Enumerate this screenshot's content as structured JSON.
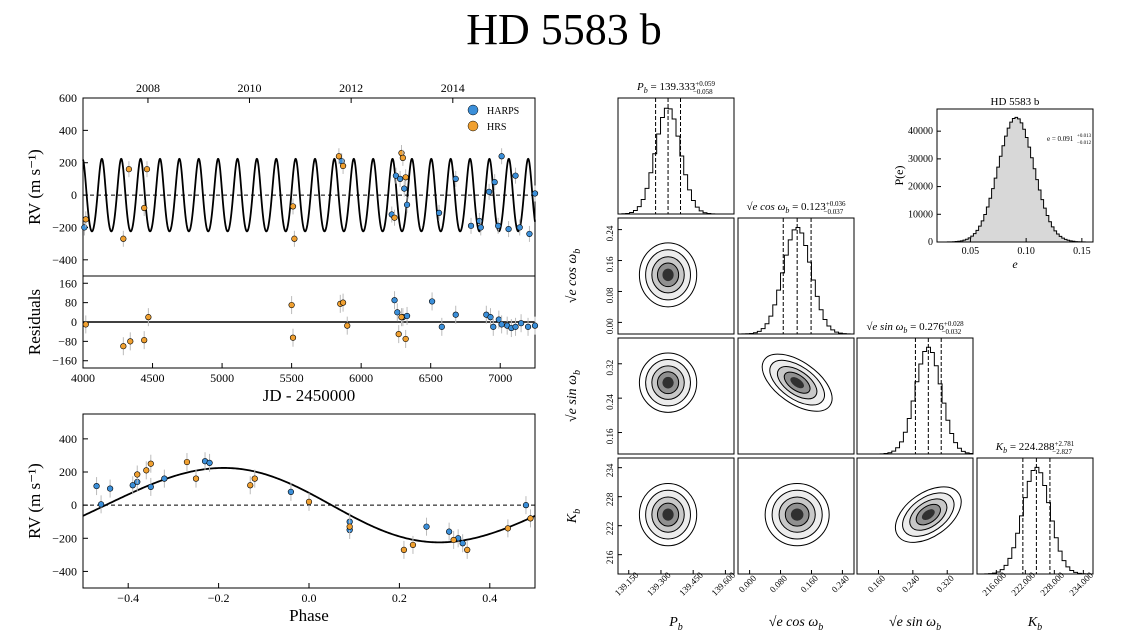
{
  "figure": {
    "title": "HD 5583 b"
  },
  "colors": {
    "harps": "#3b8fd9",
    "hrs": "#f0a030",
    "contour": "#000000",
    "hist_fill": "#d8d8d8"
  },
  "chart_data": [
    {
      "id": "rv_time",
      "type": "scatter",
      "title": "",
      "xlabel": "",
      "ylabel": "RV (m s⁻¹)",
      "xlim": [
        4000,
        7250
      ],
      "ylim": [
        -500,
        600
      ],
      "yticks": [
        -400,
        -200,
        0,
        200,
        400,
        600
      ],
      "top_axis": {
        "label_positions_jd": [
          4467,
          5197,
          5928,
          6659
        ],
        "labels": [
          "2008",
          "2010",
          "2012",
          "2014"
        ]
      },
      "legend": [
        "HARPS",
        "HRS"
      ],
      "legend_placement": "top-right",
      "model": {
        "period": 139.333,
        "amplitude": 224,
        "ecc": 0.091,
        "offset": 0
      },
      "series": [
        {
          "name": "HARPS",
          "x": [
            4010,
            5860,
            6220,
            6250,
            6280,
            6310,
            6330,
            6560,
            6680,
            6790,
            6850,
            6860,
            6920,
            6960,
            6985,
            7010,
            7060,
            7110,
            7140,
            7210,
            7250
          ],
          "y": [
            -200,
            210,
            -120,
            120,
            100,
            40,
            -60,
            -110,
            100,
            -190,
            -160,
            -200,
            20,
            80,
            -190,
            240,
            -210,
            120,
            -200,
            -240,
            10
          ]
        },
        {
          "name": "HRS",
          "x": [
            4020,
            4290,
            4330,
            4440,
            4460,
            5510,
            5520,
            5840,
            5870,
            6240,
            6290,
            6300,
            6320
          ],
          "y": [
            -150,
            -270,
            160,
            -80,
            160,
            -70,
            -270,
            240,
            180,
            -140,
            260,
            230,
            110
          ]
        }
      ]
    },
    {
      "id": "residuals",
      "type": "scatter",
      "xlabel": "JD - 2450000",
      "ylabel": "Residuals",
      "xlim": [
        4000,
        7250
      ],
      "ylim": [
        -190,
        190
      ],
      "yticks": [
        -160,
        -80,
        0,
        80,
        160
      ],
      "ytick_labels": [
        "−160",
        "−80",
        "0",
        "80",
        "160"
      ],
      "xticks": [
        4000,
        4500,
        5000,
        5500,
        6000,
        6500,
        7000
      ],
      "series": [
        {
          "name": "HARPS",
          "x": [
            6240,
            6260,
            6300,
            6330,
            6510,
            6580,
            6680,
            6900,
            6930,
            6950,
            6990,
            7010,
            7050,
            7080,
            7110,
            7150,
            7200,
            7250
          ],
          "y": [
            90,
            40,
            20,
            25,
            85,
            -20,
            30,
            30,
            20,
            -20,
            10,
            -10,
            -15,
            -25,
            -20,
            -5,
            -20,
            -15
          ]
        },
        {
          "name": "HRS",
          "x": [
            4020,
            4290,
            4340,
            4440,
            4470,
            5500,
            5510,
            5850,
            5870,
            5900,
            6270,
            6290,
            6320
          ],
          "y": [
            -10,
            -100,
            -80,
            -75,
            20,
            70,
            -65,
            75,
            80,
            -15,
            -50,
            20,
            -70
          ]
        }
      ]
    },
    {
      "id": "rv_phase",
      "type": "scatter",
      "xlabel": "Phase",
      "ylabel": "RV (m s⁻¹)",
      "xlim": [
        -0.5,
        0.5
      ],
      "ylim": [
        -500,
        550
      ],
      "yticks": [
        -400,
        -200,
        0,
        200,
        400
      ],
      "xticks": [
        -0.4,
        -0.2,
        0.0,
        0.2,
        0.4
      ],
      "xtick_labels": [
        "−0.4",
        "−0.2",
        "0.0",
        "0.2",
        "0.4"
      ],
      "series": [
        {
          "name": "HARPS",
          "x": [
            -0.47,
            -0.46,
            -0.44,
            -0.39,
            -0.38,
            -0.35,
            -0.32,
            -0.23,
            -0.22,
            -0.04,
            0.09,
            0.09,
            0.26,
            0.31,
            0.33,
            0.34,
            0.48
          ],
          "y": [
            115,
            5,
            100,
            120,
            140,
            110,
            160,
            265,
            255,
            80,
            -100,
            -150,
            -130,
            -160,
            -200,
            -230,
            0
          ]
        },
        {
          "name": "HRS",
          "x": [
            -0.38,
            -0.36,
            -0.35,
            -0.27,
            -0.25,
            -0.13,
            -0.12,
            0.0,
            0.09,
            0.21,
            0.23,
            0.32,
            0.35,
            0.44,
            0.49
          ],
          "y": [
            185,
            210,
            250,
            260,
            160,
            120,
            160,
            20,
            -130,
            -270,
            -240,
            -210,
            -270,
            -140,
            -80
          ]
        }
      ],
      "model": {
        "amplitude": 224,
        "phase_peak": -0.2
      }
    },
    {
      "id": "ecc_hist",
      "type": "histogram",
      "title": "HD 5583 b",
      "xlabel": "e",
      "ylabel": "P(e)",
      "xlim": [
        0.02,
        0.16
      ],
      "ylim": [
        0,
        48000
      ],
      "xticks": [
        0.05,
        0.1,
        0.15
      ],
      "xtick_labels": [
        "0.05",
        "0.10",
        "0.15"
      ],
      "yticks": [
        0,
        10000,
        20000,
        30000,
        40000
      ],
      "ytick_labels": [
        "0",
        "10000",
        "20000",
        "30000",
        "40000"
      ],
      "mean": 0.091,
      "sigma": 0.016,
      "peak": 45000,
      "annotation": "e = 0.091",
      "annotation_sup": "+0.013",
      "annotation_sub": "−0.012"
    },
    {
      "id": "corner",
      "type": "corner",
      "params": [
        {
          "name": "Pb",
          "mean": 139.333,
          "sigma": 0.058,
          "range": [
            139.1,
            139.64
          ],
          "ticks": [
            139.15,
            139.3,
            139.45,
            139.6
          ],
          "tick_labels": [
            "139.150",
            "139.300",
            "139.450",
            "139.600"
          ],
          "title_main": "P",
          "title_sub": "b",
          "title_value": " = 139.333",
          "title_up": "+0.059",
          "title_down": "−0.058",
          "axis_label_main": "P",
          "axis_label_sub": "b"
        },
        {
          "name": "sqrt_e_cos_w",
          "mean": 0.123,
          "sigma": 0.036,
          "range": [
            -0.03,
            0.27
          ],
          "ticks": [
            0.0,
            0.08,
            0.16,
            0.24
          ],
          "tick_labels": [
            "0.000",
            "0.080",
            "0.160",
            "0.240"
          ],
          "ylabel_ticks": [
            "0.00",
            "0.08",
            "0.16",
            "0.24"
          ],
          "title_main": "√e cos ω",
          "title_sub": "b",
          "title_value": " = 0.123",
          "title_up": "+0.036",
          "title_down": "−0.037",
          "axis_label_main": "√e cos ω",
          "axis_label_sub": "b"
        },
        {
          "name": "sqrt_e_sin_w",
          "mean": 0.276,
          "sigma": 0.03,
          "range": [
            0.11,
            0.38
          ],
          "ticks": [
            0.16,
            0.24,
            0.32
          ],
          "tick_labels": [
            "0.160",
            "0.240",
            "0.320"
          ],
          "ylabel_ticks": [
            "0.16",
            "0.24",
            "0.32"
          ],
          "title_main": "√e sin ω",
          "title_sub": "b",
          "title_value": " = 0.276",
          "title_up": "+0.028",
          "title_down": "−0.032",
          "axis_label_main": "√e sin ω",
          "axis_label_sub": "b"
        },
        {
          "name": "Kb",
          "mean": 224.288,
          "sigma": 2.8,
          "range": [
            212,
            236
          ],
          "ticks": [
            216,
            222,
            228,
            234
          ],
          "tick_labels": [
            "216.000",
            "222.000",
            "228.000",
            "234.000"
          ],
          "ylabel_ticks": [
            "216",
            "222",
            "228",
            "234"
          ],
          "title_main": "K",
          "title_sub": "b",
          "title_value": " = 224.288",
          "title_up": "+2.781",
          "title_down": "−2.827",
          "axis_label_main": "K",
          "axis_label_sub": "b"
        }
      ],
      "correlations": {
        "2-1": -0.5,
        "3-2": 0.45
      }
    }
  ]
}
